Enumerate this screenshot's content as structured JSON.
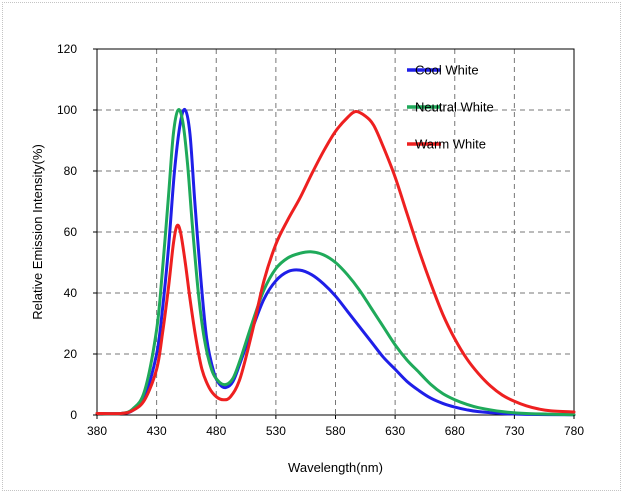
{
  "chart_data": {
    "type": "line",
    "title": "",
    "xlabel": "Wavelength(nm)",
    "ylabel": "Relative Emission Intensity(%)",
    "xlim": [
      380,
      780
    ],
    "ylim": [
      0,
      120
    ],
    "x_ticks": [
      "380",
      "430",
      "480",
      "530",
      "580",
      "630",
      "680",
      "730",
      "780"
    ],
    "y_ticks": [
      "0",
      "20",
      "40",
      "60",
      "80",
      "100",
      "120"
    ],
    "grid": true,
    "legend_position": "top-right",
    "series": [
      {
        "name": "Cool White",
        "color": "#1f1fe8",
        "points": [
          [
            380,
            0.5
          ],
          [
            400,
            0.5
          ],
          [
            410,
            1.5
          ],
          [
            420,
            6
          ],
          [
            430,
            20
          ],
          [
            435,
            35
          ],
          [
            440,
            55
          ],
          [
            445,
            80
          ],
          [
            450,
            96
          ],
          [
            454,
            100
          ],
          [
            458,
            92
          ],
          [
            462,
            70
          ],
          [
            467,
            45
          ],
          [
            472,
            25
          ],
          [
            478,
            14
          ],
          [
            483,
            10
          ],
          [
            488,
            9
          ],
          [
            494,
            11
          ],
          [
            500,
            17
          ],
          [
            510,
            28
          ],
          [
            520,
            38
          ],
          [
            530,
            44
          ],
          [
            540,
            47
          ],
          [
            550,
            47.5
          ],
          [
            560,
            46
          ],
          [
            570,
            43
          ],
          [
            580,
            39
          ],
          [
            590,
            34
          ],
          [
            600,
            29
          ],
          [
            610,
            24
          ],
          [
            620,
            19
          ],
          [
            630,
            15
          ],
          [
            640,
            11
          ],
          [
            650,
            8
          ],
          [
            660,
            5.5
          ],
          [
            670,
            3.8
          ],
          [
            680,
            2.6
          ],
          [
            690,
            1.7
          ],
          [
            700,
            1.1
          ],
          [
            720,
            0.5
          ],
          [
            740,
            0.2
          ],
          [
            780,
            0.1
          ]
        ]
      },
      {
        "name": "Neutral White",
        "color": "#1faa5a",
        "points": [
          [
            380,
            0.5
          ],
          [
            400,
            0.5
          ],
          [
            410,
            2
          ],
          [
            420,
            8
          ],
          [
            430,
            28
          ],
          [
            435,
            48
          ],
          [
            440,
            72
          ],
          [
            444,
            92
          ],
          [
            448,
            100
          ],
          [
            452,
            96
          ],
          [
            456,
            82
          ],
          [
            460,
            62
          ],
          [
            465,
            40
          ],
          [
            470,
            25
          ],
          [
            476,
            15
          ],
          [
            482,
            11
          ],
          [
            488,
            10
          ],
          [
            494,
            12
          ],
          [
            500,
            18
          ],
          [
            510,
            30
          ],
          [
            520,
            41
          ],
          [
            530,
            48
          ],
          [
            540,
            51.5
          ],
          [
            550,
            53
          ],
          [
            560,
            53.5
          ],
          [
            570,
            52.5
          ],
          [
            580,
            50
          ],
          [
            590,
            46
          ],
          [
            600,
            41
          ],
          [
            610,
            35
          ],
          [
            620,
            29
          ],
          [
            630,
            23
          ],
          [
            640,
            18
          ],
          [
            650,
            14
          ],
          [
            660,
            10
          ],
          [
            670,
            7
          ],
          [
            680,
            5
          ],
          [
            690,
            3.5
          ],
          [
            700,
            2.4
          ],
          [
            720,
            1.1
          ],
          [
            740,
            0.5
          ],
          [
            780,
            0.1
          ]
        ]
      },
      {
        "name": "Warm White",
        "color": "#ee2020",
        "points": [
          [
            380,
            0.5
          ],
          [
            400,
            0.5
          ],
          [
            410,
            1.5
          ],
          [
            420,
            5
          ],
          [
            430,
            15
          ],
          [
            435,
            27
          ],
          [
            440,
            42
          ],
          [
            444,
            56
          ],
          [
            447,
            62
          ],
          [
            450,
            60
          ],
          [
            454,
            50
          ],
          [
            458,
            38
          ],
          [
            463,
            25
          ],
          [
            468,
            15
          ],
          [
            474,
            9
          ],
          [
            480,
            6
          ],
          [
            486,
            5
          ],
          [
            492,
            6
          ],
          [
            500,
            12
          ],
          [
            510,
            27
          ],
          [
            520,
            44
          ],
          [
            530,
            56
          ],
          [
            540,
            64
          ],
          [
            550,
            71
          ],
          [
            560,
            79
          ],
          [
            570,
            86.5
          ],
          [
            580,
            93
          ],
          [
            590,
            97.5
          ],
          [
            597,
            99.5
          ],
          [
            605,
            98
          ],
          [
            612,
            95
          ],
          [
            620,
            88
          ],
          [
            630,
            78
          ],
          [
            640,
            66
          ],
          [
            650,
            54
          ],
          [
            660,
            43
          ],
          [
            670,
            33
          ],
          [
            680,
            25
          ],
          [
            690,
            18.5
          ],
          [
            700,
            13.5
          ],
          [
            710,
            9.5
          ],
          [
            720,
            6.5
          ],
          [
            730,
            4.5
          ],
          [
            740,
            3
          ],
          [
            750,
            2
          ],
          [
            760,
            1.4
          ],
          [
            780,
            1
          ]
        ]
      }
    ]
  }
}
